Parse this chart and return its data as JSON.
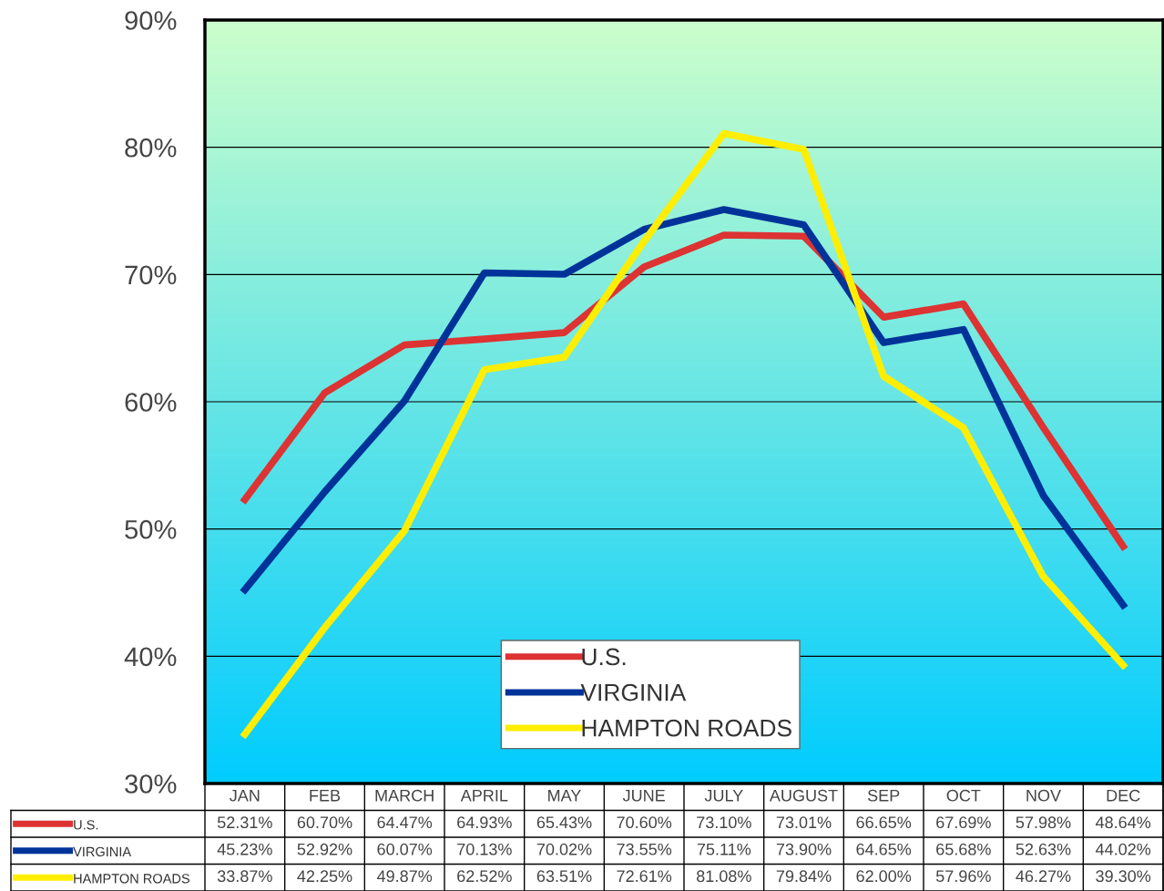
{
  "chart_data": {
    "type": "line",
    "categories": [
      "JAN",
      "FEB",
      "MARCH",
      "APRIL",
      "MAY",
      "JUNE",
      "JULY",
      "AUGUST",
      "SEP",
      "OCT",
      "NOV",
      "DEC"
    ],
    "series": [
      {
        "name": "U.S.",
        "color": "#dd3333",
        "values": [
          52.31,
          60.7,
          64.47,
          64.93,
          65.43,
          70.6,
          73.1,
          73.01,
          66.65,
          67.69,
          57.98,
          48.64
        ],
        "value_labels": [
          "52.31%",
          "60.70%",
          "64.47%",
          "64.93%",
          "65.43%",
          "70.60%",
          "73.10%",
          "73.01%",
          "66.65%",
          "67.69%",
          "57.98%",
          "48.64%"
        ]
      },
      {
        "name": "VIRGINIA",
        "color": "#003399",
        "values": [
          45.23,
          52.92,
          60.07,
          70.13,
          70.02,
          73.55,
          75.11,
          73.9,
          64.65,
          65.68,
          52.63,
          44.02
        ],
        "value_labels": [
          "45.23%",
          "52.92%",
          "60.07%",
          "70.13%",
          "70.02%",
          "73.55%",
          "75.11%",
          "73.90%",
          "64.65%",
          "65.68%",
          "52.63%",
          "44.02%"
        ]
      },
      {
        "name": "HAMPTON ROADS",
        "color": "#ffee00",
        "values": [
          33.87,
          42.25,
          49.87,
          62.52,
          63.51,
          72.61,
          81.08,
          79.84,
          62.0,
          57.96,
          46.27,
          39.3
        ],
        "value_labels": [
          "33.87%",
          "42.25%",
          "49.87%",
          "62.52%",
          "63.51%",
          "72.61%",
          "81.08%",
          "79.84%",
          "62.00%",
          "57.96%",
          "46.27%",
          "39.30%"
        ]
      }
    ],
    "ylim": [
      30,
      90
    ],
    "yticks": [
      {
        "value": 30,
        "label": "30%"
      },
      {
        "value": 40,
        "label": "40%"
      },
      {
        "value": 50,
        "label": "50%"
      },
      {
        "value": 60,
        "label": "60%"
      },
      {
        "value": 70,
        "label": "70%"
      },
      {
        "value": 80,
        "label": "80%"
      },
      {
        "value": 90,
        "label": "90%"
      }
    ],
    "grid": "y",
    "legend": "bottom",
    "marker": "none",
    "line_style": "solid"
  }
}
